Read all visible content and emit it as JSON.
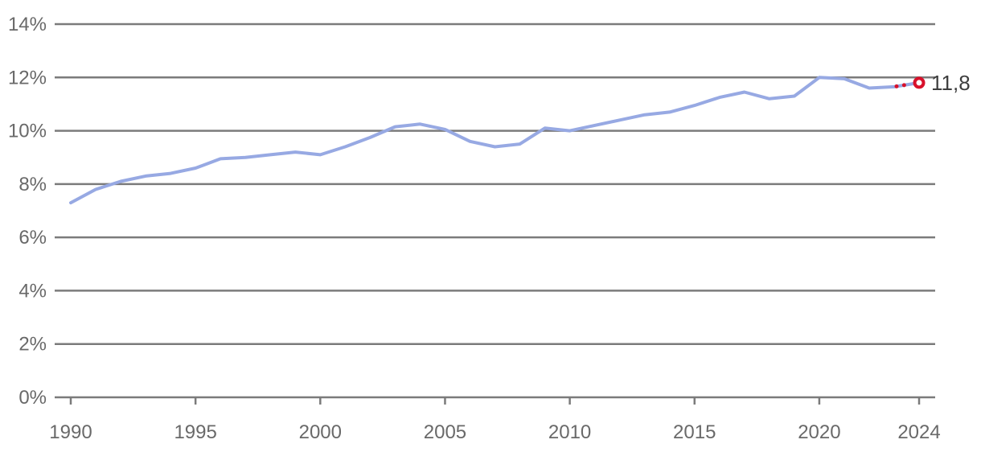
{
  "chart_data": {
    "type": "line",
    "title": "",
    "xlabel": "",
    "ylabel": "",
    "x": [
      1990,
      1991,
      1992,
      1993,
      1994,
      1995,
      1996,
      1997,
      1998,
      1999,
      2000,
      2001,
      2002,
      2003,
      2004,
      2005,
      2006,
      2007,
      2008,
      2009,
      2010,
      2011,
      2012,
      2013,
      2014,
      2015,
      2016,
      2017,
      2018,
      2019,
      2020,
      2021,
      2022,
      2023,
      2024
    ],
    "series": [
      {
        "name": "share-of-gdp-percent",
        "color": "#97a9e3",
        "values": [
          7.3,
          7.8,
          8.1,
          8.3,
          8.4,
          8.6,
          8.95,
          9.0,
          9.1,
          9.2,
          9.1,
          9.4,
          9.75,
          10.15,
          10.25,
          10.05,
          9.6,
          9.4,
          9.5,
          10.1,
          10.0,
          10.2,
          10.4,
          10.6,
          10.7,
          10.95,
          11.25,
          11.45,
          11.2,
          11.3,
          12.0,
          11.95,
          11.6,
          11.65,
          11.8
        ]
      }
    ],
    "projection": {
      "from_year": 2023,
      "year": 2024,
      "value": 11.8,
      "label": "11,8",
      "color": "#d8112b",
      "style": "dotted-with-open-circle-marker"
    },
    "ylim": [
      0,
      14
    ],
    "ytick_step": 2,
    "ytick_suffix": "%",
    "yticks": [
      "0%",
      "2%",
      "4%",
      "6%",
      "8%",
      "10%",
      "12%",
      "14%"
    ],
    "xticks": [
      1990,
      1995,
      2000,
      2005,
      2010,
      2015,
      2020,
      2024
    ],
    "grid": true,
    "legend_position": "none",
    "colors": {
      "line": "#97a9e3",
      "projection_red": "#d8112b",
      "grid": "#7b7b7b",
      "axis_text": "#696969",
      "end_label_text": "#3e3e3e",
      "background": "#ffffff"
    }
  }
}
